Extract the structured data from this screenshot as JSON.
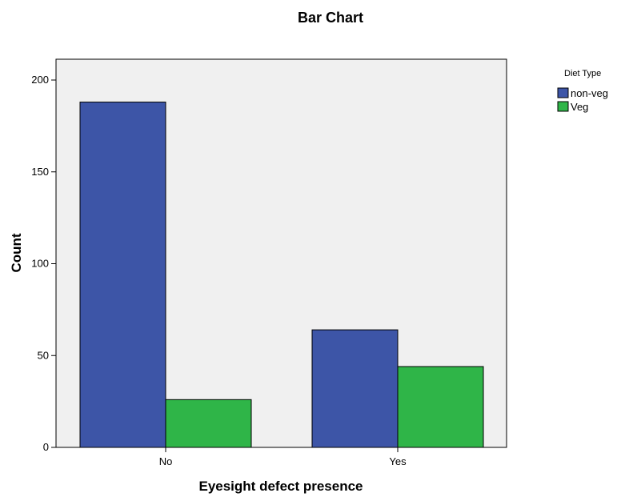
{
  "chart_data": {
    "type": "bar",
    "title": "Bar Chart",
    "xlabel": "Eyesight defect presence",
    "ylabel": "Count",
    "categories": [
      "No",
      "Yes"
    ],
    "series": [
      {
        "name": "non-veg",
        "values": [
          188,
          64
        ],
        "color": "#3d55a7"
      },
      {
        "name": "Veg",
        "values": [
          26,
          44
        ],
        "color": "#2fb548"
      }
    ],
    "ylim": [
      0,
      210
    ],
    "yticks": [
      0,
      50,
      100,
      150,
      200
    ],
    "grid": false,
    "legend": {
      "title": "Diet Type",
      "placement": "right"
    },
    "plot_background": "#f0f0f0"
  }
}
